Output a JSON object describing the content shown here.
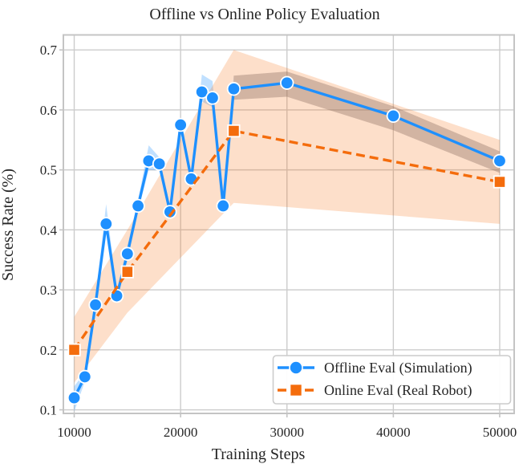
{
  "chart_data": {
    "type": "line",
    "title": "Offline vs Online Policy Evaluation",
    "xlabel": "Training Steps",
    "ylabel": "Success Rate (%)",
    "x_ticks": [
      10000,
      20000,
      30000,
      40000,
      50000
    ],
    "y_ticks": [
      0.1,
      0.2,
      0.3,
      0.4,
      0.5,
      0.6,
      0.7
    ],
    "xlim": [
      8980,
      51360
    ],
    "ylim": [
      0.094,
      0.725
    ],
    "grid": true,
    "grid_color": "#cccccc",
    "spine_color": "#c4c4c4",
    "text_color": "#262626",
    "legend_position": "lower right",
    "series": [
      {
        "name": "Offline Eval (Simulation)",
        "color": "#1e90ff",
        "marker": "circle",
        "line_style": "solid",
        "x": [
          10000,
          11000,
          12000,
          13000,
          14000,
          15000,
          16000,
          17000,
          18000,
          19000,
          20000,
          21000,
          22000,
          23000,
          24000,
          25000,
          30000,
          40000,
          50000
        ],
        "y": [
          0.12,
          0.155,
          0.275,
          0.41,
          0.29,
          0.36,
          0.44,
          0.515,
          0.51,
          0.43,
          0.575,
          0.485,
          0.63,
          0.62,
          0.44,
          0.635,
          0.645,
          0.59,
          0.515
        ],
        "band_lower": [
          0.097,
          0.147,
          0.266,
          0.399,
          0.281,
          0.35,
          0.431,
          0.5,
          0.499,
          0.421,
          0.565,
          0.476,
          0.614,
          0.605,
          0.429,
          0.617,
          0.622,
          0.566,
          0.495
        ],
        "band_upper": [
          0.139,
          0.163,
          0.284,
          0.443,
          0.299,
          0.373,
          0.449,
          0.541,
          0.521,
          0.439,
          0.586,
          0.494,
          0.659,
          0.648,
          0.451,
          0.657,
          0.664,
          0.606,
          0.531
        ],
        "band_fill": [
          {
            "from": 10000,
            "to": 25000,
            "color": "rgba(30,144,255,0.28)"
          },
          {
            "from": 25000,
            "to": 50000,
            "color": "rgba(110,110,120,0.38)"
          }
        ]
      },
      {
        "name": "Online Eval (Real Robot)",
        "color": "#f46c0c",
        "marker": "square",
        "line_style": "dashed",
        "x": [
          10000,
          15000,
          25000,
          50000
        ],
        "y": [
          0.2,
          0.33,
          0.565,
          0.48
        ],
        "band_lower": [
          0.145,
          0.262,
          0.445,
          0.41
        ],
        "band_upper": [
          0.255,
          0.4,
          0.7,
          0.55
        ],
        "band_fill": [
          {
            "from": 10000,
            "to": 50000,
            "color": "rgba(244,108,12,0.22)"
          }
        ]
      }
    ]
  }
}
